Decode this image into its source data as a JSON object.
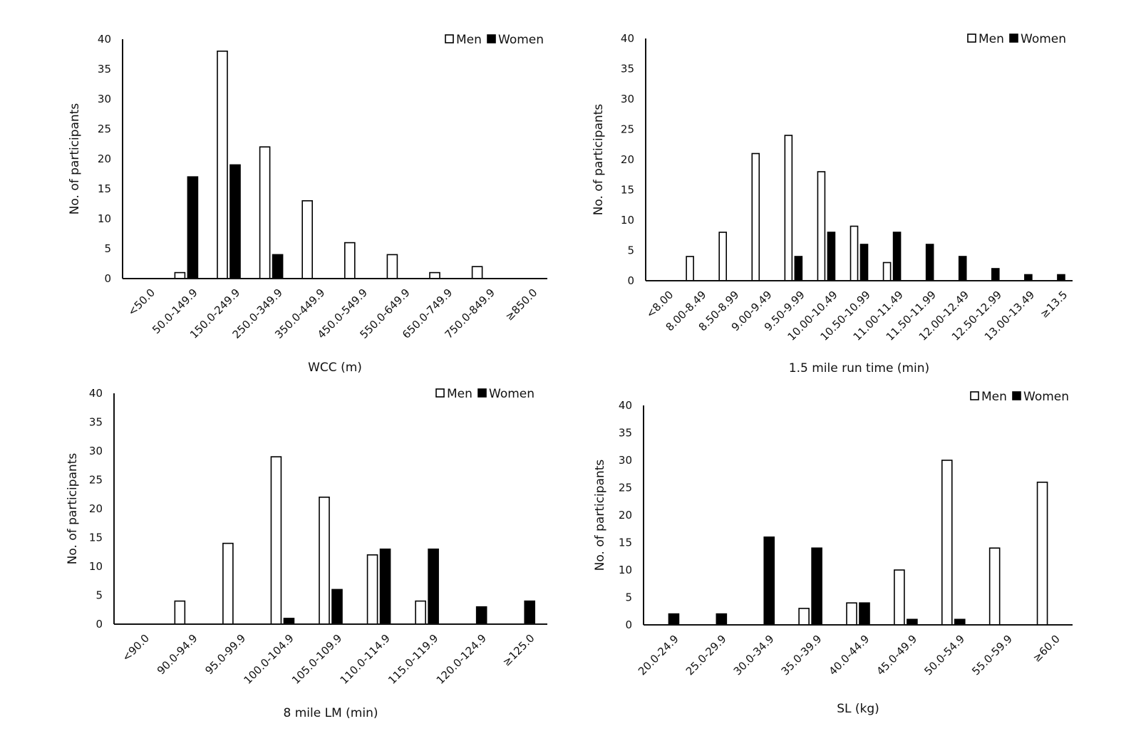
{
  "chart_data": [
    {
      "type": "bar",
      "id": "wcc",
      "title": "",
      "xlabel": "WCC (m)",
      "ylabel": "No. of participants",
      "ylim": [
        0,
        40
      ],
      "yticks": [
        0,
        5,
        10,
        15,
        20,
        25,
        30,
        35,
        40
      ],
      "grid": false,
      "legend": "top-right",
      "categories": [
        "<50.0",
        "50.0-149.9",
        "150.0-249.9",
        "250.0-349.9",
        "350.0-449.9",
        "450.0-549.9",
        "550.0-649.9",
        "650.0-749.9",
        "750.0-849.9",
        "≥850.0"
      ],
      "series": [
        {
          "name": "Men",
          "color": "#ffffff",
          "values": [
            0,
            1,
            38,
            22,
            13,
            6,
            4,
            1,
            2,
            0
          ]
        },
        {
          "name": "Women",
          "color": "#000000",
          "values": [
            0,
            17,
            19,
            4,
            0,
            0,
            0,
            0,
            0,
            0
          ]
        }
      ]
    },
    {
      "type": "bar",
      "id": "run",
      "title": "",
      "xlabel": "1.5 mile run time (min)",
      "ylabel": "No. of participants",
      "ylim": [
        0,
        40
      ],
      "yticks": [
        0,
        5,
        10,
        15,
        20,
        25,
        30,
        35,
        40
      ],
      "grid": false,
      "legend": "top-right",
      "categories": [
        "<8.00",
        "8.00-8.49",
        "8.50-8.99",
        "9.00-9.49",
        "9.50-9.99",
        "10.00-10.49",
        "10.50-10.99",
        "11.00-11.49",
        "11.50-11.99",
        "12.00-12.49",
        "12.50-12.99",
        "13.00-13.49",
        "≥13.5"
      ],
      "series": [
        {
          "name": "Men",
          "color": "#ffffff",
          "values": [
            0,
            4,
            8,
            21,
            24,
            18,
            9,
            3,
            0,
            0,
            0,
            0,
            0
          ]
        },
        {
          "name": "Women",
          "color": "#000000",
          "values": [
            0,
            0,
            0,
            0,
            4,
            8,
            6,
            8,
            6,
            4,
            2,
            1,
            1
          ]
        }
      ]
    },
    {
      "type": "bar",
      "id": "lm",
      "title": "",
      "xlabel": "8 mile LM (min)",
      "ylabel": "No. of participants",
      "ylim": [
        0,
        40
      ],
      "yticks": [
        0,
        5,
        10,
        15,
        20,
        25,
        30,
        35,
        40
      ],
      "grid": false,
      "legend": "top-right",
      "categories": [
        "<90.0",
        "90.0-94.9",
        "95.0-99.9",
        "100.0-104.9",
        "105.0-109.9",
        "110.0-114.9",
        "115.0-119.9",
        "120.0-124.9",
        "≥125.0"
      ],
      "series": [
        {
          "name": "Men",
          "color": "#ffffff",
          "values": [
            0,
            4,
            14,
            29,
            22,
            12,
            4,
            0,
            0
          ]
        },
        {
          "name": "Women",
          "color": "#000000",
          "values": [
            0,
            0,
            0,
            1,
            6,
            13,
            13,
            3,
            4
          ]
        }
      ]
    },
    {
      "type": "bar",
      "id": "sl",
      "title": "",
      "xlabel": "SL (kg)",
      "ylabel": "No. of participants",
      "ylim": [
        0,
        40
      ],
      "yticks": [
        0,
        5,
        10,
        15,
        20,
        25,
        30,
        35,
        40
      ],
      "grid": false,
      "legend": "top-right",
      "categories": [
        "20.0-24.9",
        "25.0-29.9",
        "30.0-34.9",
        "35.0-39.9",
        "40.0-44.9",
        "45.0-49.9",
        "50.0-54.9",
        "55.0-59.9",
        "≥60.0"
      ],
      "series": [
        {
          "name": "Men",
          "color": "#ffffff",
          "values": [
            0,
            0,
            0,
            3,
            4,
            10,
            30,
            14,
            26
          ]
        },
        {
          "name": "Women",
          "color": "#000000",
          "values": [
            2,
            2,
            16,
            14,
            4,
            1,
            1,
            0,
            0
          ]
        }
      ]
    }
  ]
}
